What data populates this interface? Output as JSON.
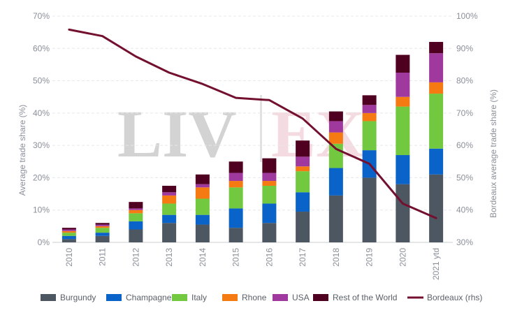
{
  "chart_data": {
    "type": "bar",
    "stacked": true,
    "categories": [
      "2010",
      "2011",
      "2012",
      "2013",
      "2014",
      "2015",
      "2016",
      "2017",
      "2018",
      "2019",
      "2020",
      "2021 ytd"
    ],
    "ylabel": "Average trade share (%)",
    "y2label": "Bordeaux average trade share (%)",
    "ylim": [
      0,
      70
    ],
    "y2lim": [
      30,
      100
    ],
    "yticks": [
      "0%",
      "10%",
      "20%",
      "30%",
      "40%",
      "50%",
      "60%",
      "70%"
    ],
    "y2ticks": [
      "30%",
      "40%",
      "50%",
      "60%",
      "70%",
      "80%",
      "90%",
      "100%"
    ],
    "grid": true,
    "legend_position": "bottom",
    "watermark": "LIV-EX",
    "series": [
      {
        "name": "Burgundy",
        "color": "#4d5761",
        "values": [
          1.0,
          2.0,
          4.0,
          6.0,
          5.5,
          4.5,
          6.0,
          9.5,
          14.5,
          20.0,
          18.0,
          21.0
        ]
      },
      {
        "name": "Champagne",
        "color": "#0a63c8",
        "values": [
          1.0,
          1.0,
          2.5,
          2.5,
          3.0,
          6.0,
          6.0,
          6.0,
          8.5,
          8.5,
          9.0,
          8.0
        ]
      },
      {
        "name": "Italy",
        "color": "#72c83e",
        "values": [
          1.0,
          1.5,
          2.5,
          3.5,
          5.0,
          6.5,
          5.5,
          6.5,
          7.5,
          9.0,
          15.0,
          17.0
        ]
      },
      {
        "name": "Rhone",
        "color": "#f57a12",
        "values": [
          0.5,
          0.5,
          1.0,
          2.5,
          3.5,
          2.0,
          1.5,
          1.5,
          3.5,
          2.5,
          3.0,
          3.5
        ]
      },
      {
        "name": "USA",
        "color": "#a0399e",
        "values": [
          0.5,
          0.5,
          0.5,
          1.0,
          1.0,
          2.5,
          2.5,
          3.0,
          3.5,
          2.5,
          7.5,
          9.0
        ]
      },
      {
        "name": "Rest of the World",
        "color": "#4f0021",
        "values": [
          0.5,
          0.5,
          2.0,
          2.0,
          3.0,
          3.5,
          4.5,
          5.0,
          3.0,
          3.0,
          5.5,
          3.5
        ]
      }
    ],
    "line_series": {
      "name": "Bordeaux (rhs)",
      "color": "#74102f",
      "values": [
        95.8,
        93.8,
        87.5,
        82.5,
        79.0,
        74.7,
        74.0,
        68.3,
        58.9,
        54.3,
        42.0,
        37.5
      ]
    }
  }
}
